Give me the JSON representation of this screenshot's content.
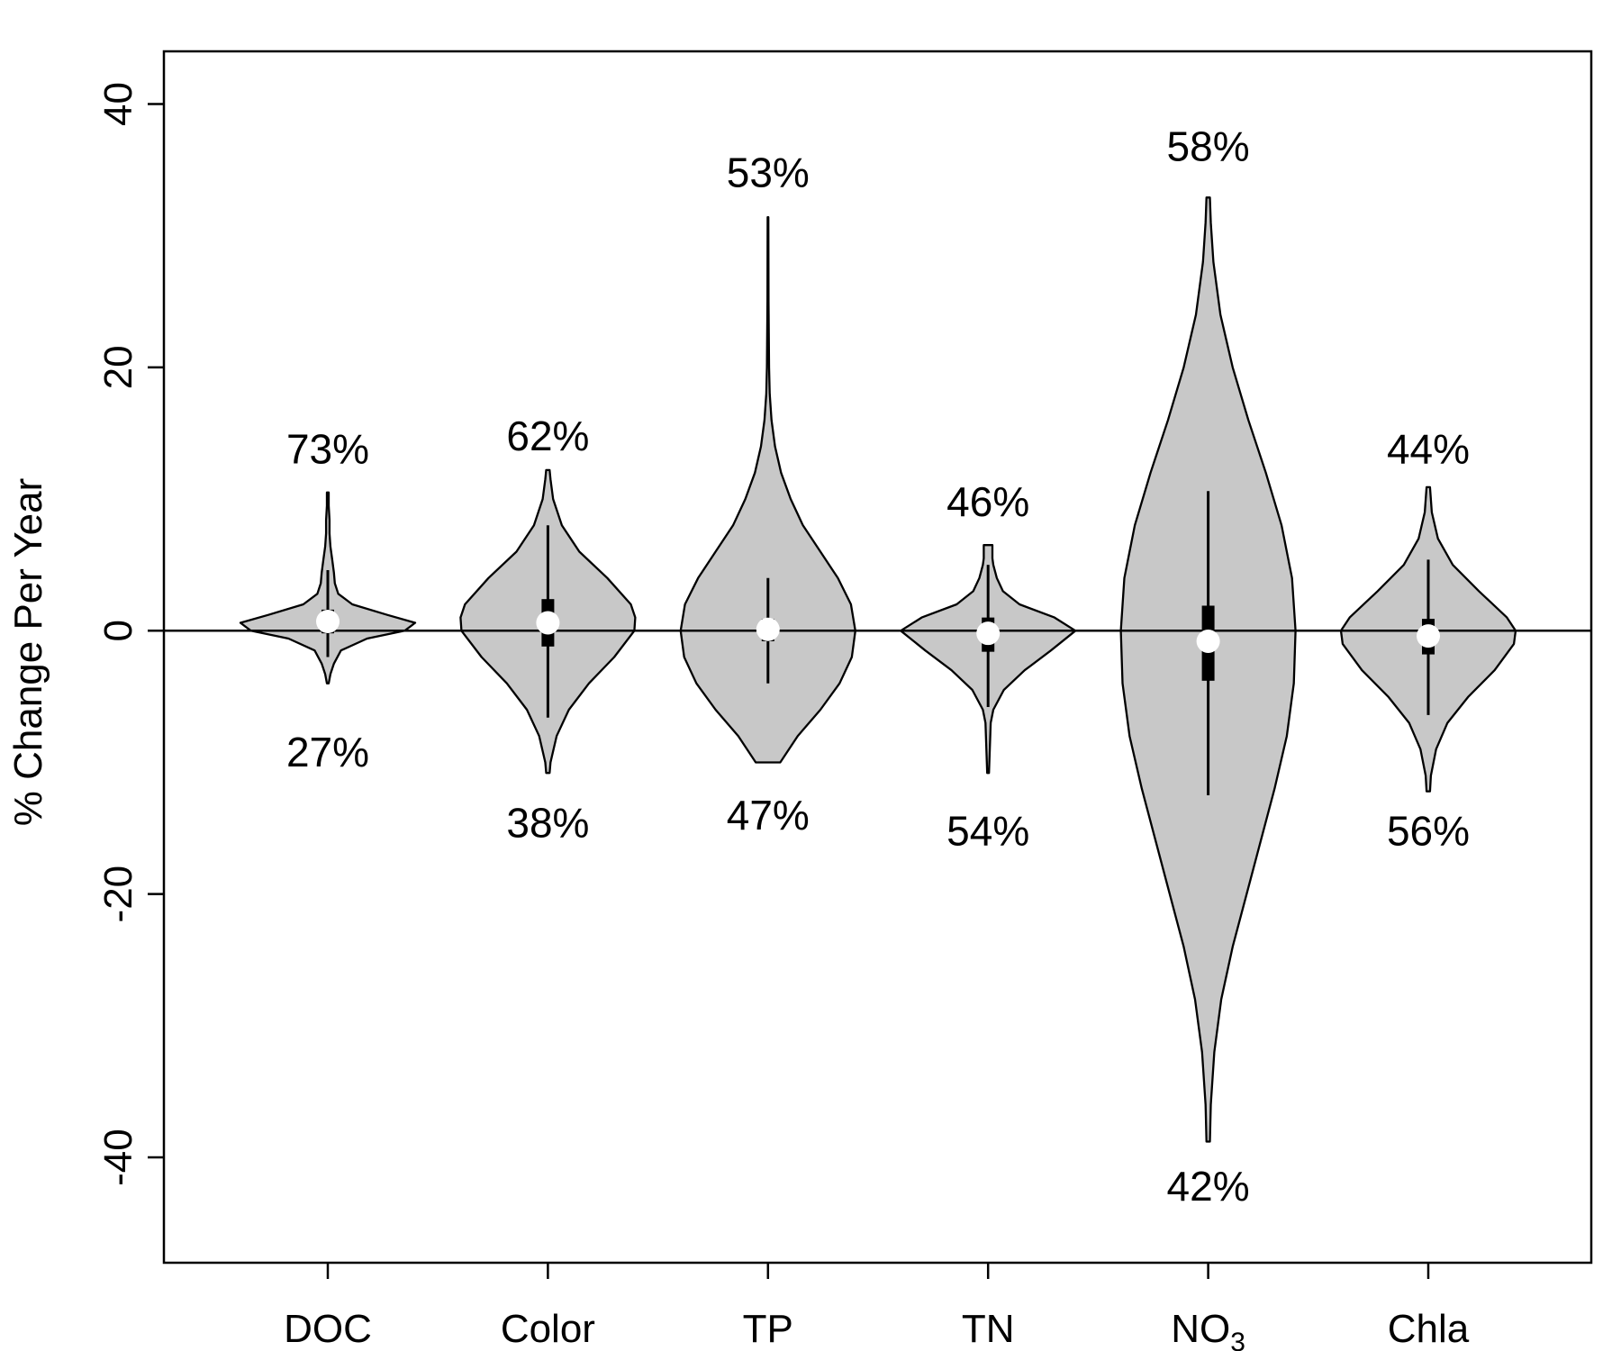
{
  "chart_data": {
    "type": "violin",
    "ylabel": "% Change Per Year",
    "ylim": [
      -48,
      44
    ],
    "yticks": [
      {
        "value": 40,
        "label": "40"
      },
      {
        "value": 20,
        "label": "20"
      },
      {
        "value": 0,
        "label": "0"
      },
      {
        "value": -20,
        "label": "-20"
      },
      {
        "value": -40,
        "label": "-40"
      }
    ],
    "reference_line": 0,
    "fill_color": "#c8c8c8",
    "categories": [
      {
        "name": "DOC",
        "sub": "",
        "min": -4,
        "max": 10.5,
        "q1": -0.2,
        "q3": 1.6,
        "median": 0.7,
        "whisker_low": -2.0,
        "whisker_high": 4.6,
        "pct_positive": "73%",
        "pct_negative": "27%",
        "pct_positive_at": 13.8,
        "pct_negative_at": -9.2,
        "density": [
          [
            -4,
            0.01
          ],
          [
            -3.3,
            0.03
          ],
          [
            -2.5,
            0.07
          ],
          [
            -1.5,
            0.15
          ],
          [
            -0.6,
            0.45
          ],
          [
            0,
            0.88
          ],
          [
            0.6,
            1.0
          ],
          [
            1.2,
            0.68
          ],
          [
            2,
            0.28
          ],
          [
            2.8,
            0.12
          ],
          [
            3.6,
            0.08
          ],
          [
            4.4,
            0.07
          ],
          [
            5.4,
            0.05
          ],
          [
            6.4,
            0.03
          ],
          [
            7.4,
            0.02
          ],
          [
            8.4,
            0.02
          ],
          [
            9.5,
            0.01
          ],
          [
            10.5,
            0.01
          ]
        ]
      },
      {
        "name": "Color",
        "sub": "",
        "min": -10.8,
        "max": 12.2,
        "q1": -1.2,
        "q3": 2.4,
        "median": 0.6,
        "whisker_low": -6.6,
        "whisker_high": 8.0,
        "pct_positive": "62%",
        "pct_negative": "38%",
        "pct_positive_at": 14.8,
        "pct_negative_at": -14.6,
        "density": [
          [
            -10.8,
            0.02
          ],
          [
            -10,
            0.03
          ],
          [
            -8,
            0.1
          ],
          [
            -6,
            0.24
          ],
          [
            -4,
            0.47
          ],
          [
            -2,
            0.76
          ],
          [
            0,
            0.99
          ],
          [
            1,
            1.0
          ],
          [
            2,
            0.95
          ],
          [
            4,
            0.68
          ],
          [
            6,
            0.36
          ],
          [
            8,
            0.16
          ],
          [
            10,
            0.06
          ],
          [
            11.5,
            0.03
          ],
          [
            12.2,
            0.02
          ]
        ]
      },
      {
        "name": "TP",
        "sub": "",
        "min": -10,
        "max": 31.4,
        "q1": -0.8,
        "q3": 0.9,
        "median": 0.1,
        "whisker_low": -4.0,
        "whisker_high": 4.0,
        "pct_positive": "53%",
        "pct_negative": "47%",
        "pct_positive_at": 34.8,
        "pct_negative_at": -14.0,
        "density": [
          [
            -10,
            0.14
          ],
          [
            -8,
            0.34
          ],
          [
            -6,
            0.6
          ],
          [
            -4,
            0.82
          ],
          [
            -2,
            0.96
          ],
          [
            0,
            1.0
          ],
          [
            2,
            0.95
          ],
          [
            4,
            0.8
          ],
          [
            6,
            0.6
          ],
          [
            8,
            0.4
          ],
          [
            10,
            0.26
          ],
          [
            12,
            0.15
          ],
          [
            14,
            0.08
          ],
          [
            16,
            0.04
          ],
          [
            18,
            0.02
          ],
          [
            20,
            0.012
          ],
          [
            25,
            0.006
          ],
          [
            31.4,
            0.004
          ]
        ]
      },
      {
        "name": "TN",
        "sub": "",
        "min": -10.8,
        "max": 6.5,
        "q1": -1.6,
        "q3": 1.0,
        "median": -0.2,
        "whisker_low": -5.8,
        "whisker_high": 5.0,
        "pct_positive": "46%",
        "pct_negative": "54%",
        "pct_positive_at": 9.8,
        "pct_negative_at": -15.2,
        "density": [
          [
            -10.8,
            0.01
          ],
          [
            -9,
            0.02
          ],
          [
            -7,
            0.03
          ],
          [
            -6,
            0.06
          ],
          [
            -4.5,
            0.18
          ],
          [
            -3,
            0.42
          ],
          [
            -1.5,
            0.72
          ],
          [
            0,
            1.0
          ],
          [
            1,
            0.76
          ],
          [
            2,
            0.36
          ],
          [
            3,
            0.17
          ],
          [
            4,
            0.1
          ],
          [
            5,
            0.06
          ],
          [
            5.5,
            0.05
          ],
          [
            6.5,
            0.05
          ]
        ]
      },
      {
        "name": "NO",
        "sub": "3",
        "min": -38.8,
        "max": 32.9,
        "q1": -3.8,
        "q3": 1.9,
        "median": -0.8,
        "whisker_low": -12.5,
        "whisker_high": 10.6,
        "pct_positive": "58%",
        "pct_negative": "42%",
        "pct_positive_at": 36.8,
        "pct_negative_at": -42.2,
        "density": [
          [
            -38.8,
            0.02
          ],
          [
            -36,
            0.03
          ],
          [
            -32,
            0.07
          ],
          [
            -28,
            0.15
          ],
          [
            -24,
            0.28
          ],
          [
            -20,
            0.44
          ],
          [
            -16,
            0.6
          ],
          [
            -12,
            0.76
          ],
          [
            -8,
            0.9
          ],
          [
            -4,
            0.98
          ],
          [
            0,
            1.0
          ],
          [
            4,
            0.96
          ],
          [
            8,
            0.84
          ],
          [
            12,
            0.66
          ],
          [
            16,
            0.46
          ],
          [
            20,
            0.28
          ],
          [
            24,
            0.14
          ],
          [
            28,
            0.06
          ],
          [
            31,
            0.03
          ],
          [
            32.9,
            0.02
          ]
        ]
      },
      {
        "name": "Chla",
        "sub": "",
        "min": -12.2,
        "max": 10.9,
        "q1": -1.8,
        "q3": 0.9,
        "median": -0.4,
        "whisker_low": -6.4,
        "whisker_high": 5.4,
        "pct_positive": "44%",
        "pct_negative": "56%",
        "pct_positive_at": 13.8,
        "pct_negative_at": -15.2,
        "density": [
          [
            -12.2,
            0.02
          ],
          [
            -11,
            0.03
          ],
          [
            -9,
            0.09
          ],
          [
            -7,
            0.22
          ],
          [
            -5,
            0.46
          ],
          [
            -3,
            0.76
          ],
          [
            -1,
            0.98
          ],
          [
            0,
            1.0
          ],
          [
            1,
            0.9
          ],
          [
            3,
            0.58
          ],
          [
            5,
            0.28
          ],
          [
            7,
            0.11
          ],
          [
            9,
            0.04
          ],
          [
            10.9,
            0.02
          ]
        ]
      }
    ]
  }
}
